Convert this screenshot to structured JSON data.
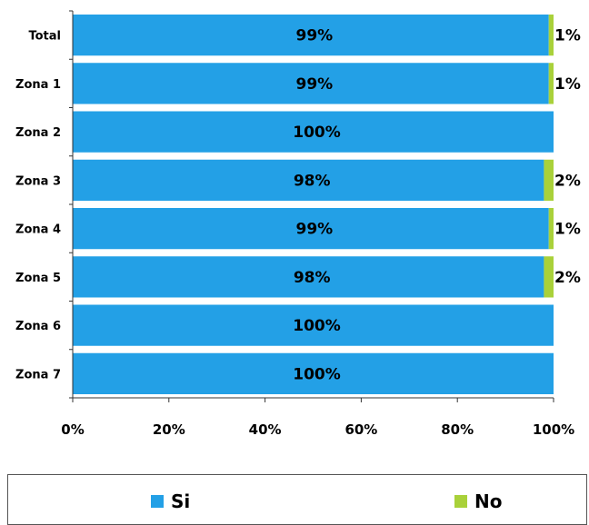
{
  "chart_data": {
    "type": "bar",
    "orientation": "horizontal",
    "stacked": true,
    "categories": [
      "Total",
      "Zona 1",
      "Zona 2",
      "Zona 3",
      "Zona 4",
      "Zona 5",
      "Zona 6",
      "Zona 7"
    ],
    "series": [
      {
        "name": "Si",
        "color": "#23A0E6",
        "values": [
          99,
          99,
          100,
          98,
          99,
          98,
          100,
          100
        ],
        "labels": [
          "99%",
          "99%",
          "100%",
          "98%",
          "99%",
          "98%",
          "100%",
          "100%"
        ]
      },
      {
        "name": "No",
        "color": "#A9D13A",
        "values": [
          1,
          1,
          0,
          2,
          1,
          2,
          0,
          0
        ],
        "labels": [
          "1%",
          "1%",
          "",
          "2%",
          "1%",
          "2%",
          "",
          ""
        ]
      }
    ],
    "x_ticks": [
      "0%",
      "20%",
      "40%",
      "60%",
      "80%",
      "100%"
    ],
    "xlim": [
      0,
      100
    ],
    "grid": false,
    "legend_position": "bottom"
  }
}
